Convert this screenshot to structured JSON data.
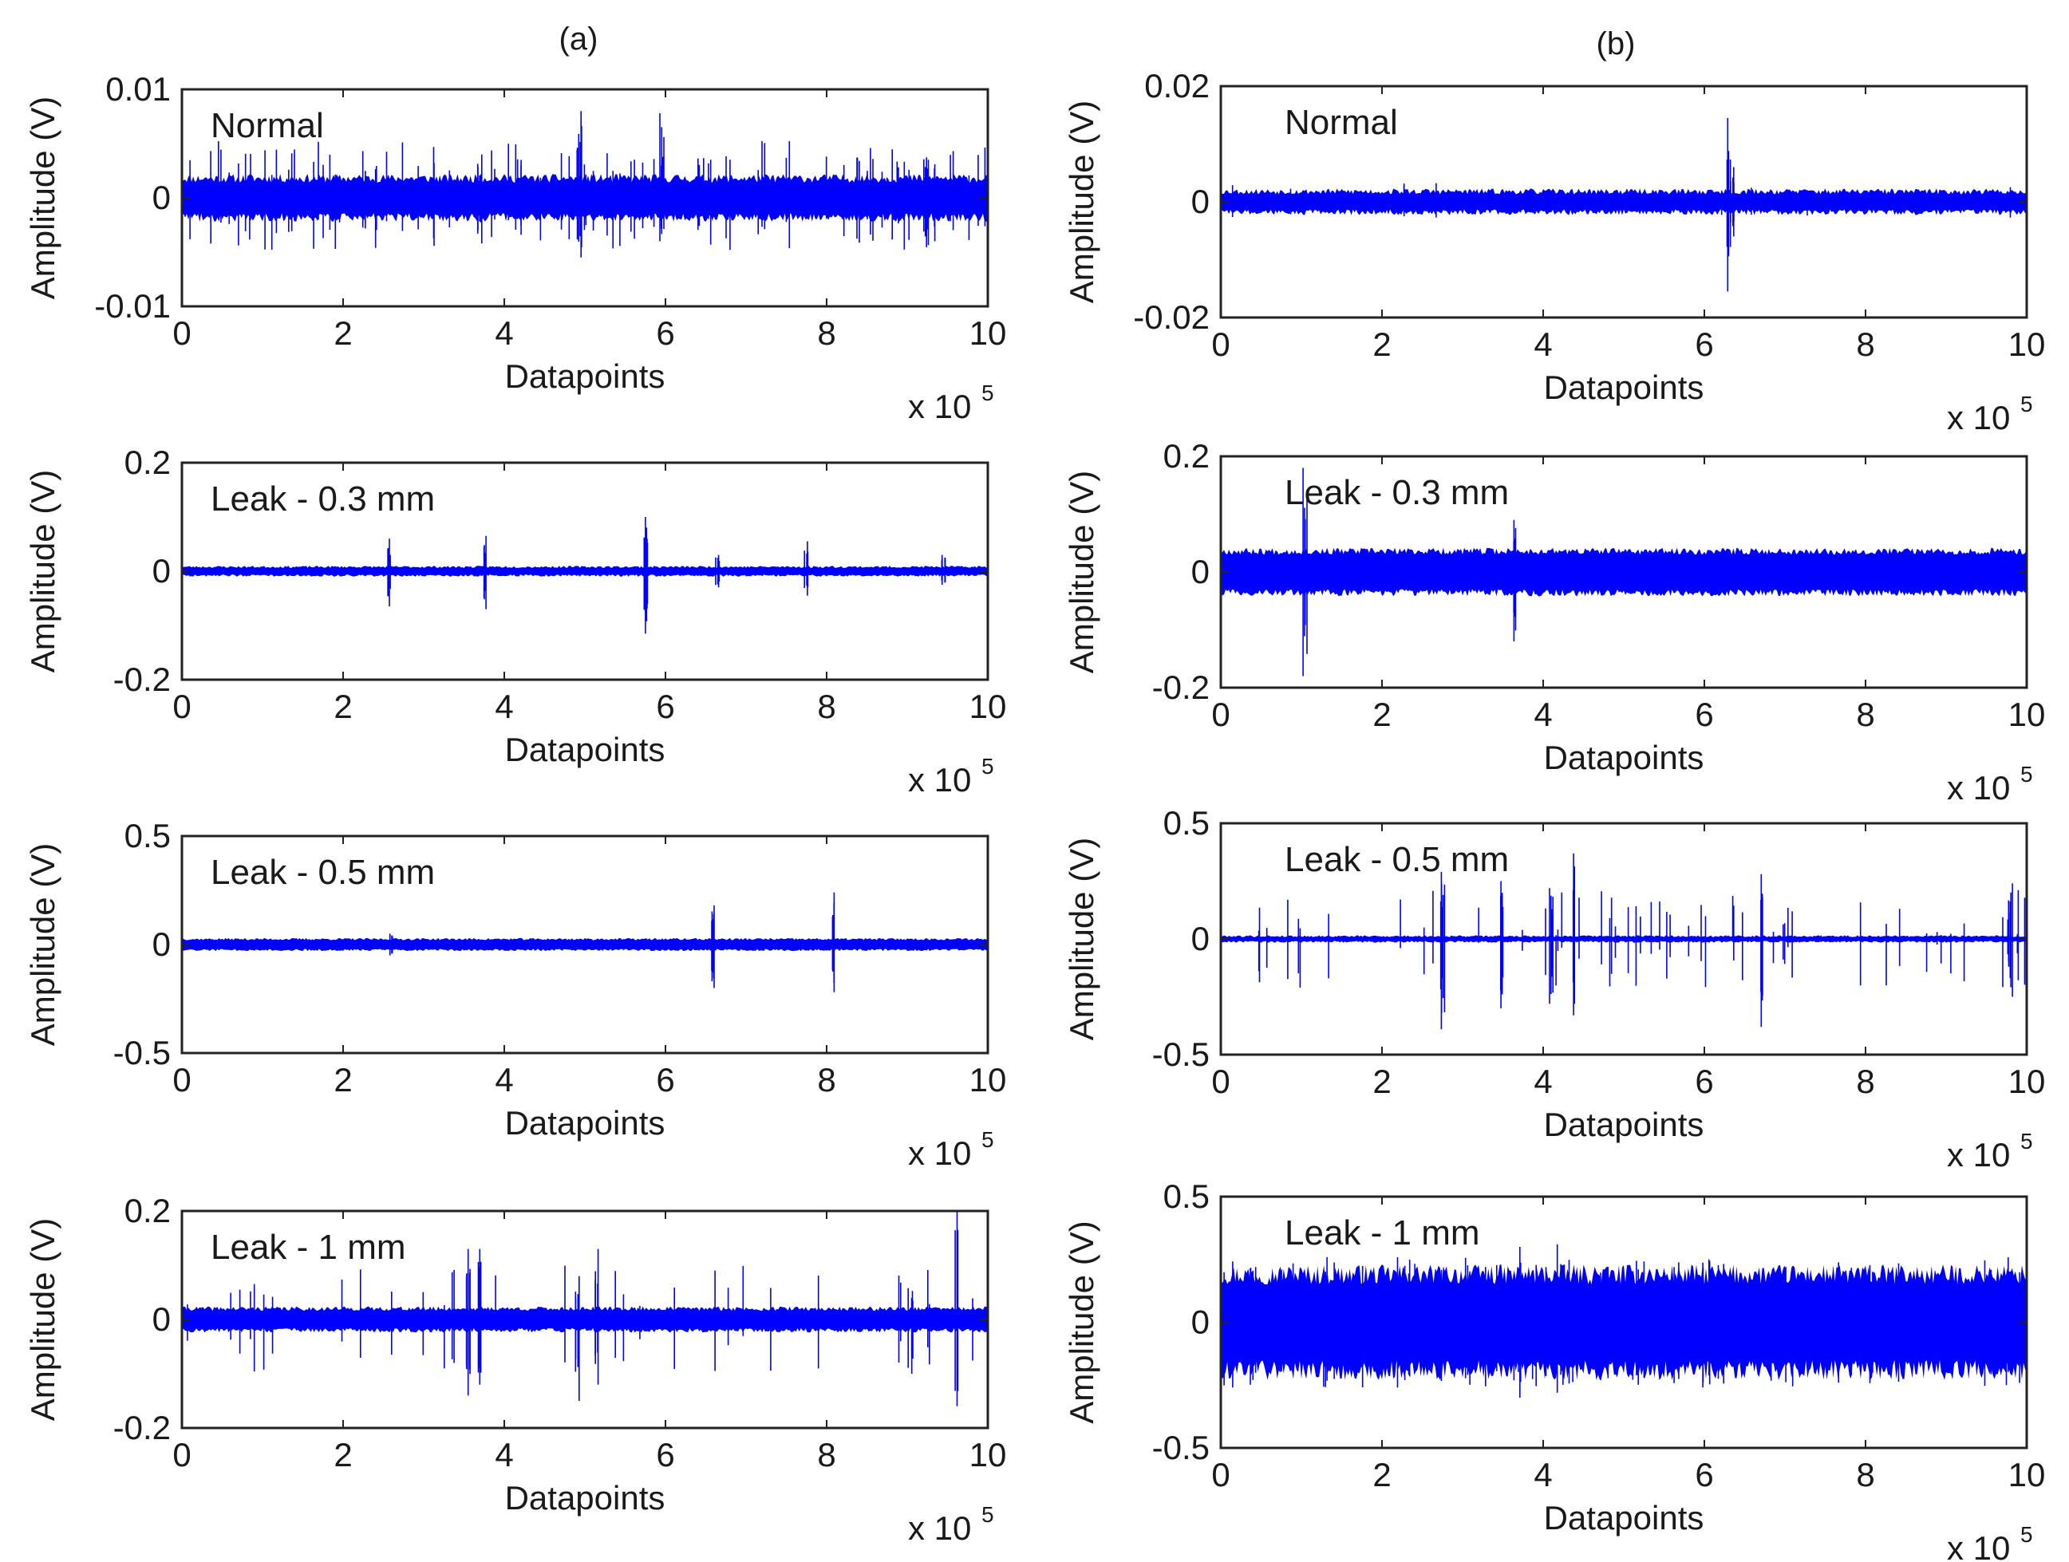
{
  "figure": {
    "labels": {
      "a": "(a)",
      "b": "(b)"
    }
  },
  "chart_data": [
    {
      "id": "a1",
      "column": "a",
      "type": "line",
      "annotation": "Normal",
      "xlabel": "Datapoints",
      "ylabel": "Amplitude (V)",
      "xlim": [
        0,
        10
      ],
      "ylim": [
        -0.01,
        0.01
      ],
      "xticks": [
        "0",
        "2",
        "4",
        "6",
        "8",
        "10"
      ],
      "yticks": [
        {
          "v": 0.01,
          "label": "0.01"
        },
        {
          "v": 0,
          "label": "0"
        },
        {
          "v": -0.01,
          "label": "-0.01"
        }
      ],
      "x_multiplier": {
        "base": "x 10",
        "exp": "5"
      },
      "baseline_band": 0.0018,
      "noise_amp": 0.0004,
      "spike_density": 95,
      "spike_max_up": 0.0035,
      "spike_max_down": 0.003,
      "spikes": [
        {
          "x": 4.95,
          "up": 0.008,
          "down": -0.0055
        },
        {
          "x": 5.95,
          "up": 0.0078,
          "down": -0.004
        },
        {
          "x": 3.7,
          "up": 0.004,
          "down": -0.0042
        }
      ],
      "seed": 11
    },
    {
      "id": "a2",
      "column": "a",
      "type": "line",
      "annotation": "Leak - 0.3 mm",
      "xlabel": "Datapoints",
      "ylabel": "Amplitude (V)",
      "xlim": [
        0,
        10
      ],
      "ylim": [
        -0.2,
        0.2
      ],
      "xticks": [
        "0",
        "2",
        "4",
        "6",
        "8",
        "10"
      ],
      "yticks": [
        {
          "v": 0.2,
          "label": "0.2"
        },
        {
          "v": 0,
          "label": "0"
        },
        {
          "v": -0.2,
          "label": "-0.2"
        }
      ],
      "x_multiplier": {
        "base": "x 10",
        "exp": "5"
      },
      "baseline_band": 0.008,
      "noise_amp": 0.002,
      "spike_density": 0,
      "spike_max_up": 0,
      "spike_max_down": 0,
      "spikes": [
        {
          "x": 2.58,
          "up": 0.06,
          "down": -0.065
        },
        {
          "x": 3.75,
          "up": 0.065,
          "down": -0.07
        },
        {
          "x": 5.75,
          "up": 0.1,
          "down": -0.115
        },
        {
          "x": 6.65,
          "up": 0.03,
          "down": -0.03
        },
        {
          "x": 7.75,
          "up": 0.055,
          "down": -0.045
        },
        {
          "x": 9.45,
          "up": 0.03,
          "down": -0.025
        }
      ],
      "seed": 23
    },
    {
      "id": "a3",
      "column": "a",
      "type": "line",
      "annotation": "Leak - 0.5 mm",
      "xlabel": "Datapoints",
      "ylabel": "Amplitude (V)",
      "xlim": [
        0,
        10
      ],
      "ylim": [
        -0.5,
        0.5
      ],
      "xticks": [
        "0",
        "2",
        "4",
        "6",
        "8",
        "10"
      ],
      "yticks": [
        {
          "v": 0.5,
          "label": "0.5"
        },
        {
          "v": 0,
          "label": "0"
        },
        {
          "v": -0.5,
          "label": "-0.5"
        }
      ],
      "x_multiplier": {
        "base": "x 10",
        "exp": "5"
      },
      "baseline_band": 0.025,
      "noise_amp": 0.005,
      "spike_density": 0,
      "spike_max_up": 0,
      "spike_max_down": 0,
      "spikes": [
        {
          "x": 2.6,
          "up": 0.05,
          "down": -0.05
        },
        {
          "x": 6.6,
          "up": 0.18,
          "down": -0.2
        },
        {
          "x": 8.1,
          "up": 0.24,
          "down": -0.22
        }
      ],
      "seed": 37
    },
    {
      "id": "a4",
      "column": "a",
      "type": "line",
      "annotation": "Leak - 1 mm",
      "xlabel": "Datapoints",
      "ylabel": "Amplitude (V)",
      "xlim": [
        0,
        10
      ],
      "ylim": [
        -0.2,
        0.2
      ],
      "xticks": [
        "0",
        "2",
        "4",
        "6",
        "8",
        "10"
      ],
      "yticks": [
        {
          "v": 0.2,
          "label": "0.2"
        },
        {
          "v": 0,
          "label": "0"
        },
        {
          "v": -0.2,
          "label": "-0.2"
        }
      ],
      "x_multiplier": {
        "base": "x 10",
        "exp": "5"
      },
      "baseline_band": 0.02,
      "noise_amp": 0.004,
      "spike_density": 35,
      "spike_max_up": 0.08,
      "spike_max_down": 0.08,
      "spikes": [
        {
          "x": 3.55,
          "up": 0.13,
          "down": -0.14
        },
        {
          "x": 3.7,
          "up": 0.13,
          "down": -0.12
        },
        {
          "x": 5.15,
          "up": 0.13,
          "down": -0.12
        },
        {
          "x": 4.9,
          "up": 0.08,
          "down": -0.15
        },
        {
          "x": 9.6,
          "up": 0.2,
          "down": -0.16
        }
      ],
      "seed": 41
    },
    {
      "id": "b1",
      "column": "b",
      "type": "line",
      "annotation": "Normal",
      "xlabel": "Datapoints",
      "ylabel": "Amplitude (V)",
      "xlim": [
        0,
        10
      ],
      "ylim": [
        -0.02,
        0.02
      ],
      "xticks": [
        "0",
        "2",
        "4",
        "6",
        "8",
        "10"
      ],
      "yticks": [
        {
          "v": 0.02,
          "label": "0.02"
        },
        {
          "v": 0,
          "label": "0"
        },
        {
          "v": -0.02,
          "label": "-0.02"
        }
      ],
      "x_multiplier": {
        "base": "x 10",
        "exp": "5"
      },
      "baseline_band": 0.0018,
      "noise_amp": 0.0005,
      "spike_density": 10,
      "spike_max_up": 0.0015,
      "spike_max_down": 0.0015,
      "spikes": [
        {
          "x": 6.3,
          "up": 0.0145,
          "down": -0.0155
        },
        {
          "x": 6.35,
          "up": 0.006,
          "down": -0.006
        }
      ],
      "seed": 53
    },
    {
      "id": "b2",
      "column": "b",
      "type": "line",
      "annotation": "Leak - 0.3 mm",
      "xlabel": "Datapoints",
      "ylabel": "Amplitude (V)",
      "xlim": [
        0,
        10
      ],
      "ylim": [
        -0.2,
        0.2
      ],
      "xticks": [
        "0",
        "2",
        "4",
        "6",
        "8",
        "10"
      ],
      "yticks": [
        {
          "v": 0.2,
          "label": "0.2"
        },
        {
          "v": 0,
          "label": "0"
        },
        {
          "v": -0.2,
          "label": "-0.2"
        }
      ],
      "x_multiplier": {
        "base": "x 10",
        "exp": "5"
      },
      "baseline_band": 0.036,
      "noise_amp": 0.006,
      "spike_density": 0,
      "spike_max_up": 0,
      "spike_max_down": 0,
      "spikes": [
        {
          "x": 1.05,
          "up": 0.18,
          "down": -0.18
        },
        {
          "x": 3.65,
          "up": 0.09,
          "down": -0.12
        }
      ],
      "seed": 67
    },
    {
      "id": "b3",
      "column": "b",
      "type": "line",
      "annotation": "Leak - 0.5 mm",
      "xlabel": "Datapoints",
      "ylabel": "Amplitude (V)",
      "xlim": [
        0,
        10
      ],
      "ylim": [
        -0.5,
        0.5
      ],
      "xticks": [
        "0",
        "2",
        "4",
        "6",
        "8",
        "10"
      ],
      "yticks": [
        {
          "v": 0.5,
          "label": "0.5"
        },
        {
          "v": 0,
          "label": "0"
        },
        {
          "v": -0.5,
          "label": "-0.5"
        }
      ],
      "x_multiplier": {
        "base": "x 10",
        "exp": "5"
      },
      "baseline_band": 0.012,
      "noise_amp": 0.004,
      "spike_density": 55,
      "spike_max_up": 0.2,
      "spike_max_down": 0.2,
      "spikes": [
        {
          "x": 2.75,
          "up": 0.29,
          "down": -0.39
        },
        {
          "x": 3.5,
          "up": 0.25,
          "down": -0.3
        },
        {
          "x": 4.1,
          "up": 0.22,
          "down": -0.28
        },
        {
          "x": 4.4,
          "up": 0.37,
          "down": -0.33
        },
        {
          "x": 6.7,
          "up": 0.28,
          "down": -0.38
        },
        {
          "x": 9.8,
          "up": 0.24,
          "down": -0.25
        }
      ],
      "seed": 79
    },
    {
      "id": "b4",
      "column": "b",
      "type": "line",
      "annotation": "Leak - 1 mm",
      "xlabel": "Datapoints",
      "ylabel": "Amplitude (V)",
      "xlim": [
        0,
        10
      ],
      "ylim": [
        -0.5,
        0.5
      ],
      "xticks": [
        "0",
        "2",
        "4",
        "6",
        "8",
        "10"
      ],
      "yticks": [
        {
          "v": 0.5,
          "label": "0.5"
        },
        {
          "v": 0,
          "label": "0"
        },
        {
          "v": -0.5,
          "label": "-0.5"
        }
      ],
      "x_multiplier": {
        "base": "x 10",
        "exp": "5"
      },
      "baseline_band": 0.19,
      "noise_amp": 0.04,
      "spike_density": 60,
      "spike_max_up": 0.07,
      "spike_max_down": 0.07,
      "spikes": [
        {
          "x": 3.7,
          "up": 0.3,
          "down": -0.3
        },
        {
          "x": 4.2,
          "up": 0.31,
          "down": -0.28
        }
      ],
      "seed": 97
    }
  ]
}
